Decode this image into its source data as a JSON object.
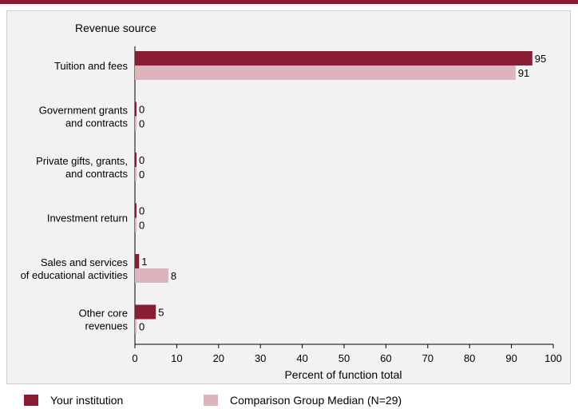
{
  "colors": {
    "top_bar": "#8a1c33",
    "institution": "#8a1c33",
    "comparison": "#ddb3bc",
    "axis": "#000000",
    "frame_bg": "#f2f2f2"
  },
  "legend": {
    "institution_label": "Your institution",
    "comparison_label": "Comparison Group Median (N=29)"
  },
  "chart_data": {
    "type": "bar",
    "orientation": "horizontal",
    "title": "Revenue source",
    "xlabel": "Percent of function total",
    "xlim": [
      0,
      100
    ],
    "x_ticks": [
      0,
      10,
      20,
      30,
      40,
      50,
      60,
      70,
      80,
      90,
      100
    ],
    "categories": [
      [
        "Tuition and fees"
      ],
      [
        "Government grants",
        "and contracts"
      ],
      [
        "Private gifts, grants,",
        "and contracts"
      ],
      [
        "Investment return"
      ],
      [
        "Sales and services",
        "of educational activities"
      ],
      [
        "Other core",
        "revenues"
      ]
    ],
    "series": [
      {
        "name": "Your institution",
        "values": [
          95,
          0,
          0,
          0,
          1,
          5
        ]
      },
      {
        "name": "Comparison Group Median (N=29)",
        "values": [
          91,
          0,
          0,
          0,
          8,
          0
        ]
      }
    ],
    "grid": false,
    "legend_position": "bottom"
  }
}
